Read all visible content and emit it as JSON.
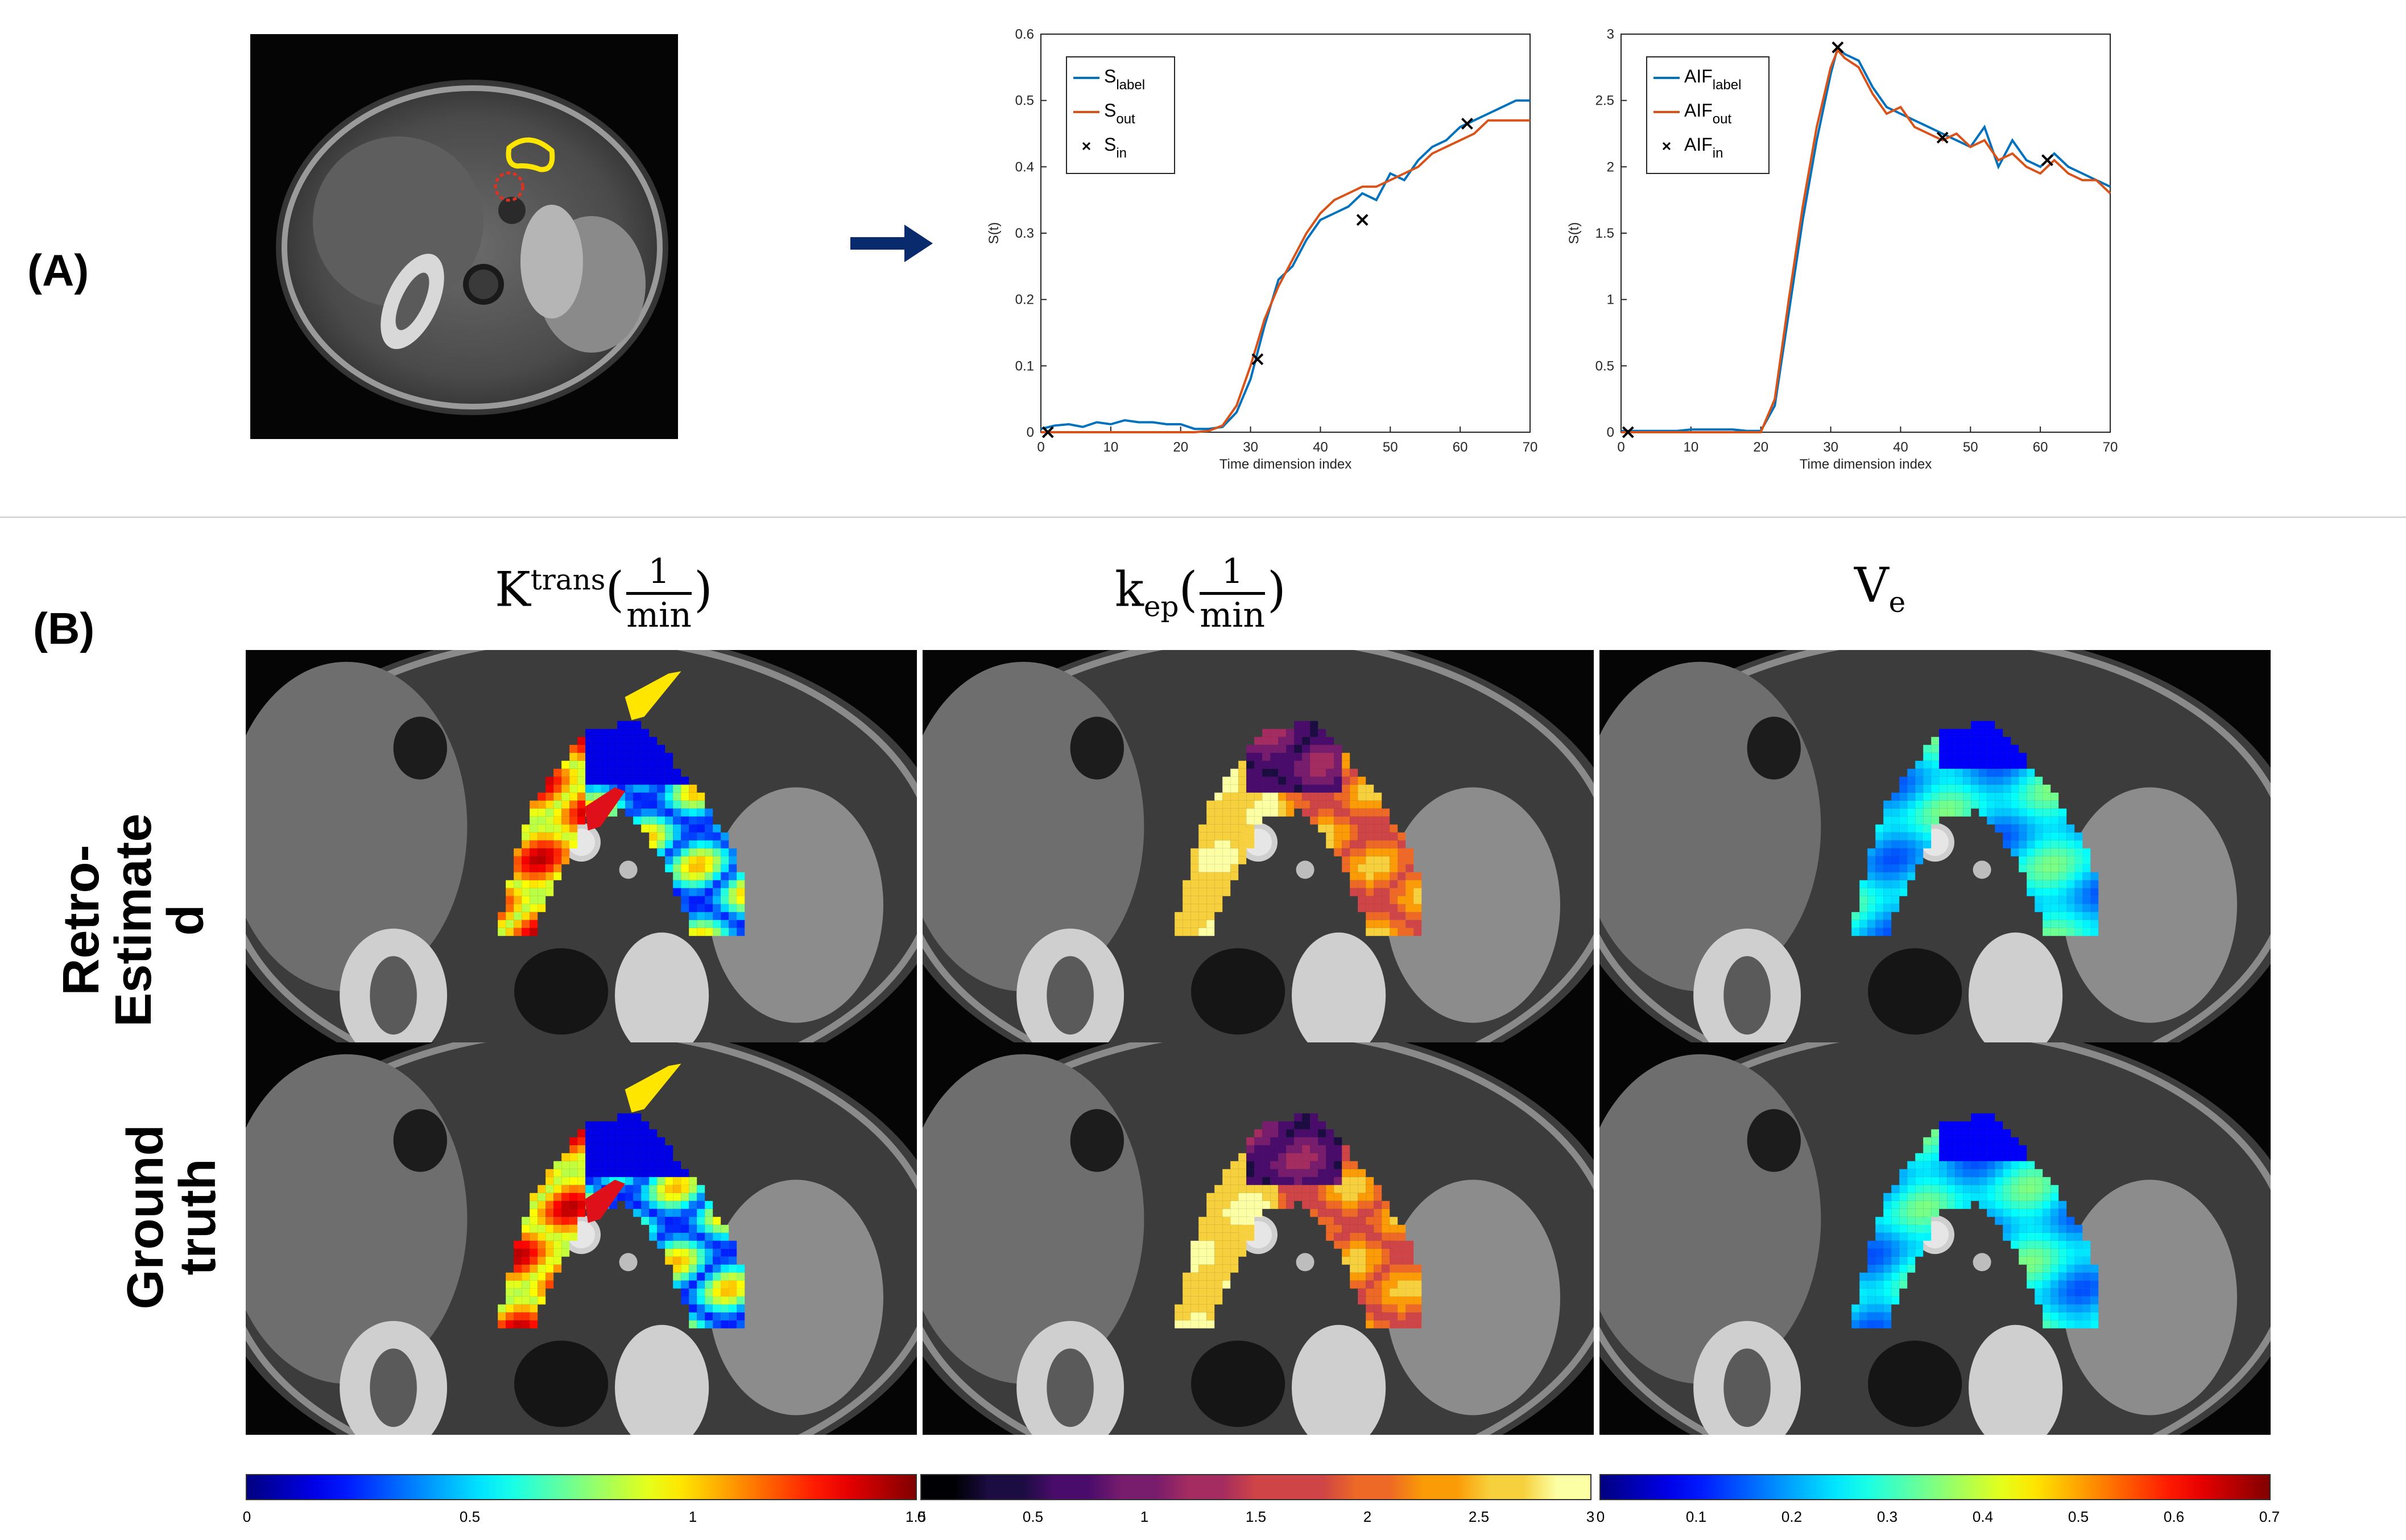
{
  "panelA": {
    "label": "(A)",
    "charts": [
      {
        "type": "line",
        "xlabel": "Time dimension index",
        "ylabel": "S(t)",
        "xlim": [
          0,
          70
        ],
        "ylim": [
          0,
          0.6
        ],
        "xticks": [
          "0",
          "10",
          "20",
          "30",
          "40",
          "50",
          "60",
          "70"
        ],
        "yticks": [
          "0",
          "0.1",
          "0.2",
          "0.3",
          "0.4",
          "0.5",
          "0.6"
        ],
        "legend_position": "top-left",
        "legend": [
          {
            "base": "S",
            "sub": "label",
            "marker": "line",
            "color": "#0072BD"
          },
          {
            "base": "S",
            "sub": "out",
            "marker": "line",
            "color": "#D95319"
          },
          {
            "base": "S",
            "sub": "in",
            "marker": "x",
            "color": "#000000"
          }
        ],
        "series": [
          {
            "color": "#0072BD",
            "x": [
              0,
              2,
              4,
              6,
              8,
              10,
              12,
              14,
              16,
              18,
              20,
              22,
              24,
              26,
              28,
              30,
              32,
              34,
              36,
              38,
              40,
              42,
              44,
              46,
              48,
              50,
              52,
              54,
              56,
              58,
              60,
              62,
              64,
              66,
              68,
              70
            ],
            "y": [
              0.005,
              0.01,
              0.012,
              0.008,
              0.015,
              0.012,
              0.018,
              0.015,
              0.015,
              0.012,
              0.012,
              0.005,
              0.005,
              0.008,
              0.03,
              0.08,
              0.16,
              0.23,
              0.25,
              0.29,
              0.32,
              0.33,
              0.34,
              0.36,
              0.35,
              0.39,
              0.38,
              0.41,
              0.43,
              0.44,
              0.46,
              0.47,
              0.48,
              0.49,
              0.5,
              0.5
            ]
          },
          {
            "color": "#D95319",
            "x": [
              0,
              2,
              4,
              6,
              8,
              10,
              12,
              14,
              16,
              18,
              20,
              22,
              24,
              26,
              28,
              30,
              32,
              34,
              36,
              38,
              40,
              42,
              44,
              46,
              48,
              50,
              52,
              54,
              56,
              58,
              60,
              62,
              64,
              66,
              68,
              70
            ],
            "y": [
              0,
              0,
              0,
              0,
              0,
              0,
              0,
              0,
              0,
              0,
              0,
              0,
              0.002,
              0.01,
              0.04,
              0.1,
              0.17,
              0.22,
              0.26,
              0.3,
              0.33,
              0.35,
              0.36,
              0.37,
              0.37,
              0.38,
              0.39,
              0.4,
              0.42,
              0.43,
              0.44,
              0.45,
              0.47,
              0.47,
              0.47,
              0.47
            ]
          }
        ],
        "markers": {
          "x": [
            1,
            31,
            46,
            61
          ],
          "y": [
            0.0,
            0.11,
            0.32,
            0.465
          ]
        }
      },
      {
        "type": "line",
        "xlabel": "Time dimension index",
        "ylabel": "S(t)",
        "xlim": [
          0,
          70
        ],
        "ylim": [
          0,
          3
        ],
        "xticks": [
          "0",
          "10",
          "20",
          "30",
          "40",
          "50",
          "60",
          "70"
        ],
        "yticks": [
          "0",
          "0.5",
          "1",
          "1.5",
          "2",
          "2.5",
          "3"
        ],
        "legend_position": "top-left",
        "legend": [
          {
            "base": "AIF",
            "sub": "label",
            "marker": "line",
            "color": "#0072BD"
          },
          {
            "base": "AIF",
            "sub": "out",
            "marker": "line",
            "color": "#D95319"
          },
          {
            "base": "AIF",
            "sub": "in",
            "marker": "x",
            "color": "#000000"
          }
        ],
        "series": [
          {
            "color": "#0072BD",
            "x": [
              0,
              2,
              4,
              6,
              8,
              10,
              12,
              14,
              16,
              18,
              20,
              22,
              24,
              26,
              28,
              30,
              31,
              32,
              34,
              36,
              38,
              40,
              42,
              44,
              46,
              48,
              50,
              52,
              54,
              56,
              58,
              60,
              62,
              64,
              66,
              68,
              70
            ],
            "y": [
              0.01,
              0.01,
              0.01,
              0.01,
              0.01,
              0.02,
              0.02,
              0.02,
              0.02,
              0.01,
              0.01,
              0.2,
              0.9,
              1.6,
              2.2,
              2.7,
              2.9,
              2.85,
              2.8,
              2.6,
              2.45,
              2.4,
              2.35,
              2.3,
              2.25,
              2.2,
              2.15,
              2.3,
              2.0,
              2.2,
              2.05,
              2.0,
              2.1,
              2.0,
              1.95,
              1.9,
              1.85
            ]
          },
          {
            "color": "#D95319",
            "x": [
              0,
              2,
              4,
              6,
              8,
              10,
              12,
              14,
              16,
              18,
              20,
              22,
              24,
              26,
              28,
              30,
              31,
              32,
              34,
              36,
              38,
              40,
              42,
              44,
              46,
              48,
              50,
              52,
              54,
              56,
              58,
              60,
              62,
              64,
              66,
              68,
              70
            ],
            "y": [
              0,
              0,
              0,
              0,
              0,
              0,
              0,
              0,
              0,
              0,
              0,
              0.25,
              1.0,
              1.7,
              2.3,
              2.75,
              2.88,
              2.82,
              2.75,
              2.55,
              2.4,
              2.45,
              2.3,
              2.25,
              2.2,
              2.25,
              2.15,
              2.2,
              2.05,
              2.1,
              2.0,
              1.95,
              2.05,
              1.95,
              1.9,
              1.9,
              1.8
            ]
          }
        ],
        "markers": {
          "x": [
            1,
            31,
            46,
            61
          ],
          "y": [
            0.0,
            2.9,
            2.22,
            2.05
          ]
        }
      }
    ]
  },
  "panelB": {
    "label": "(B)",
    "columns": [
      {
        "base": "K",
        "sup": "trans",
        "sub": "",
        "frac_num": "1",
        "frac_den": "min"
      },
      {
        "base": "k",
        "sup": "",
        "sub": "ep",
        "frac_num": "1",
        "frac_den": "min"
      },
      {
        "base": "V",
        "sup": "",
        "sub": "e",
        "frac_num": "",
        "frac_den": ""
      }
    ],
    "rows": [
      {
        "label_line1": "Retro-",
        "label_line2": "Estimate",
        "label_line3": "d"
      },
      {
        "label_line1": "Ground truth",
        "label_line2": "",
        "label_line3": ""
      }
    ],
    "colorbars": [
      {
        "colormap": "jet",
        "ticks": [
          "0",
          "0.5",
          "1",
          "1.5"
        ]
      },
      {
        "colormap": "inferno",
        "ticks": [
          "0",
          "0.5",
          "1",
          "1.5",
          "2",
          "2.5",
          "3"
        ]
      },
      {
        "colormap": "jet",
        "ticks": [
          "0",
          "0.1",
          "0.2",
          "0.3",
          "0.4",
          "0.5",
          "0.6",
          "0.7"
        ]
      }
    ]
  }
}
